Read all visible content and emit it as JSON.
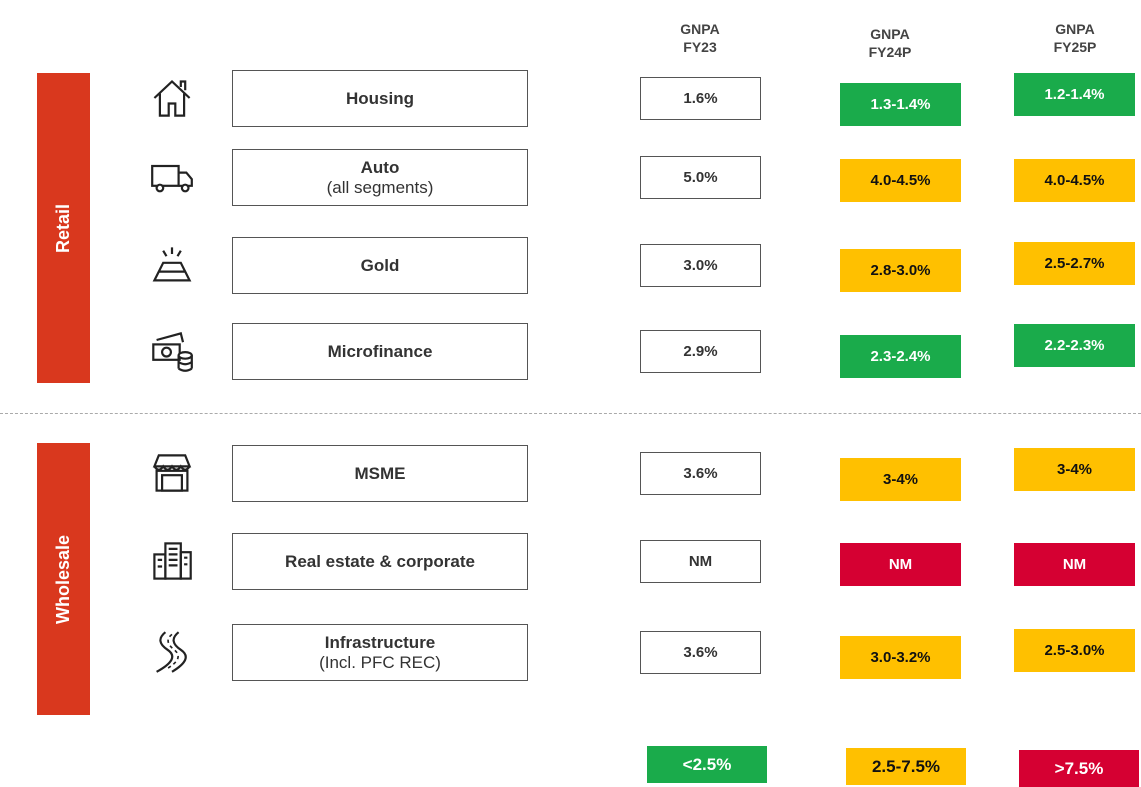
{
  "columns": [
    {
      "lines": [
        "GNPA",
        "FY23"
      ]
    },
    {
      "lines": [
        "GNPA",
        "FY24P"
      ]
    },
    {
      "lines": [
        "GNPA",
        "FY25P"
      ]
    }
  ],
  "groups": [
    {
      "name": "Retail",
      "color": "#d9381e",
      "rows": [
        {
          "icon": "house",
          "label": "Housing",
          "cells": [
            {
              "text": "1.6%"
            },
            {
              "text": "1.3-1.4%",
              "color": "#1aab4b"
            },
            {
              "text": "1.2-1.4%",
              "color": "#1aab4b"
            }
          ]
        },
        {
          "icon": "truck",
          "label": "Auto",
          "sublabel": "(all segments)",
          "cells": [
            {
              "text": "5.0%"
            },
            {
              "text": "4.0-4.5%",
              "color": "#ffc000"
            },
            {
              "text": "4.0-4.5%",
              "color": "#ffc000"
            }
          ]
        },
        {
          "icon": "gold",
          "label": "Gold",
          "cells": [
            {
              "text": "3.0%"
            },
            {
              "text": "2.8-3.0%",
              "color": "#ffc000"
            },
            {
              "text": "2.5-2.7%",
              "color": "#ffc000"
            }
          ]
        },
        {
          "icon": "money",
          "label": "Microfinance",
          "cells": [
            {
              "text": "2.9%"
            },
            {
              "text": "2.3-2.4%",
              "color": "#1aab4b"
            },
            {
              "text": "2.2-2.3%",
              "color": "#1aab4b"
            }
          ]
        }
      ]
    },
    {
      "name": "Wholesale",
      "color": "#d9381e",
      "rows": [
        {
          "icon": "shop",
          "label": "MSME",
          "cells": [
            {
              "text": "3.6%"
            },
            {
              "text": "3-4%",
              "color": "#ffc000"
            },
            {
              "text": "3-4%",
              "color": "#ffc000"
            }
          ]
        },
        {
          "icon": "building",
          "label": "Real estate & corporate",
          "cells": [
            {
              "text": "NM"
            },
            {
              "text": "NM",
              "color": "#d50032"
            },
            {
              "text": "NM",
              "color": "#d50032"
            }
          ]
        },
        {
          "icon": "road",
          "label": "Infrastructure",
          "sublabel": "(Incl. PFC REC)",
          "cells": [
            {
              "text": "3.6%"
            },
            {
              "text": "3.0-3.2%",
              "color": "#ffc000"
            },
            {
              "text": "2.5-3.0%",
              "color": "#ffc000"
            }
          ]
        }
      ]
    }
  ],
  "legend": [
    {
      "text": "<2.5%",
      "color": "#1aab4b"
    },
    {
      "text": "2.5-7.5%",
      "color": "#ffc000"
    },
    {
      "text": ">7.5%",
      "color": "#d50032"
    }
  ]
}
